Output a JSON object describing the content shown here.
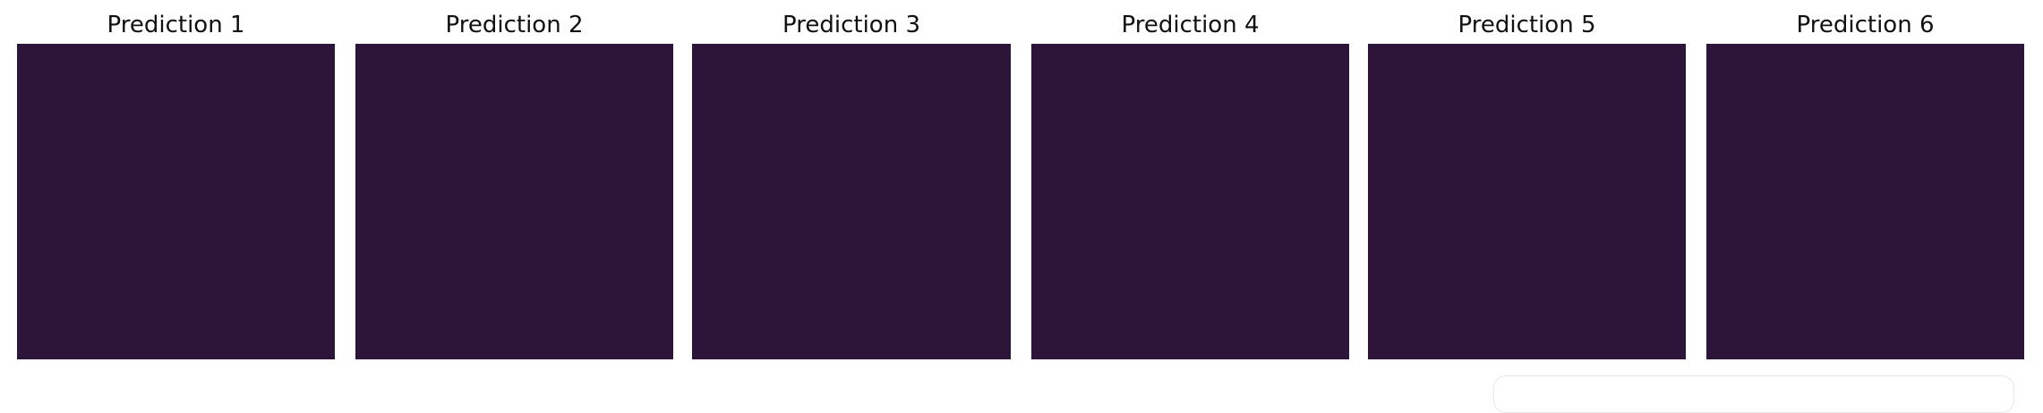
{
  "panels": [
    {
      "title": "Prediction 1",
      "fill": "#2c1538"
    },
    {
      "title": "Prediction 2",
      "fill": "#2c1538"
    },
    {
      "title": "Prediction 3",
      "fill": "#2c1538"
    },
    {
      "title": "Prediction 4",
      "fill": "#2c1538"
    },
    {
      "title": "Prediction 5",
      "fill": "#2c1538"
    },
    {
      "title": "Prediction 6",
      "fill": "#2c1538"
    }
  ]
}
